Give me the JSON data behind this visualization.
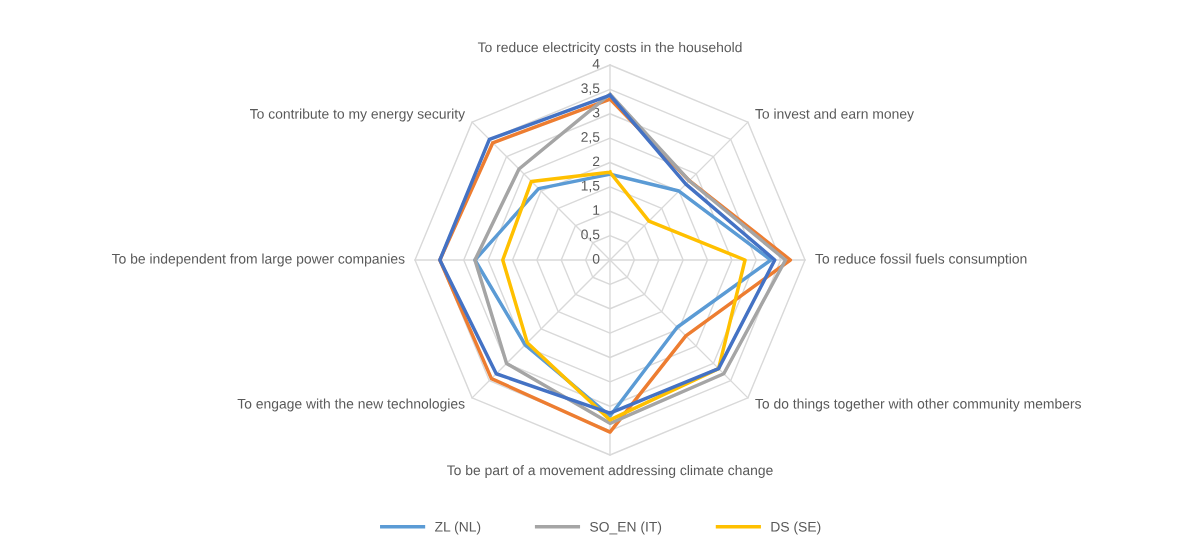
{
  "chart_data": {
    "type": "radar",
    "categories": [
      "To reduce electricity costs in the household",
      "To invest and earn money",
      "To reduce fossil fuels consumption",
      "To do things together with other community members",
      "To be part of a movement addressing climate change",
      "To engage with the new technologies",
      "To be independent from large power companies",
      "To contribute to my energy security"
    ],
    "series": [
      {
        "name": "ZL (NL)",
        "color": "#5b9bd5",
        "values": [
          1.76,
          2.0,
          3.3,
          1.95,
          3.2,
          2.46,
          2.77,
          2.07
        ]
      },
      {
        "color": "#ed7d31",
        "values": [
          3.3,
          2.3,
          3.7,
          2.2,
          3.53,
          3.44,
          3.49,
          3.4
        ]
      },
      {
        "name": "SO_EN (IT)",
        "color": "#a5a5a5",
        "values": [
          3.4,
          2.3,
          3.6,
          3.3,
          3.35,
          3.0,
          2.77,
          2.64
        ]
      },
      {
        "name": "DS (SE)",
        "color": "#ffc000",
        "values": [
          1.8,
          1.13,
          2.77,
          3.15,
          3.28,
          2.4,
          2.2,
          2.28
        ]
      },
      {
        "color": "#4472c4",
        "values": [
          3.38,
          2.2,
          3.38,
          3.15,
          3.14,
          3.3,
          3.49,
          3.5
        ]
      }
    ],
    "ylim": [
      0,
      4
    ],
    "yticks": [
      0,
      {
        "value": 0.5,
        "label": "0,5"
      },
      1,
      {
        "value": 1.5,
        "label": "1,5"
      },
      2,
      {
        "value": 2.5,
        "label": "2,5"
      },
      3,
      {
        "value": 3.5,
        "label": "3,5"
      },
      4
    ],
    "grid": true,
    "legend": "bottom",
    "marker": "none",
    "line_style": "solid"
  }
}
